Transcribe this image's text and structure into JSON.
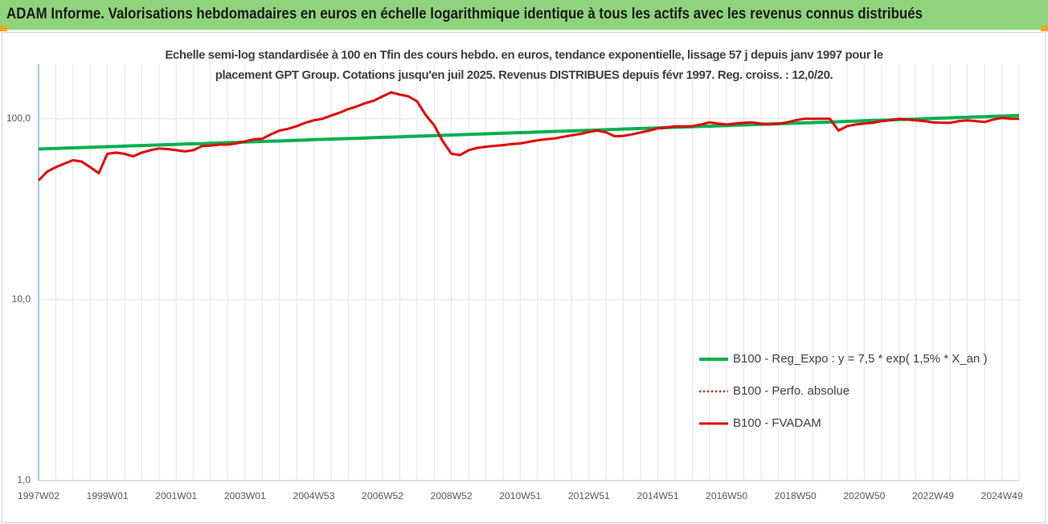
{
  "header": {
    "title": "ADAM Informe. Valorisations hebdomadaires en euros en échelle logarithmique identique à tous les actifs avec les revenus connus distribués"
  },
  "chart_data": {
    "type": "line",
    "title": "Echelle semi-log standardisée à 100 en Tfin des cours hebdo. en euros, tendance exponentielle, lissage 57 j depuis janv 1997 pour le placement GPT Group. Cotations jusqu'en juil 2025. Revenus DISTRIBUES depuis févr 1997. Reg. croiss. : 12,0/20.",
    "log_scale": true,
    "grid": true,
    "legend": "right",
    "ylim": [
      1,
      200
    ],
    "yticks": [
      {
        "value": 1,
        "label": "1,0"
      },
      {
        "value": 10,
        "label": "10,0"
      },
      {
        "value": 100,
        "label": "100,0"
      }
    ],
    "categories": [
      "1997W02",
      null,
      null,
      null,
      null,
      null,
      null,
      null,
      "1999W01",
      null,
      null,
      null,
      null,
      null,
      null,
      null,
      "2001W01",
      null,
      null,
      null,
      null,
      null,
      null,
      null,
      "2003W01",
      null,
      null,
      null,
      null,
      null,
      null,
      null,
      "2004W53",
      null,
      null,
      null,
      null,
      null,
      null,
      null,
      "2006W52",
      null,
      null,
      null,
      null,
      null,
      null,
      null,
      "2008W52",
      null,
      null,
      null,
      null,
      null,
      null,
      null,
      "2010W51",
      null,
      null,
      null,
      null,
      null,
      null,
      null,
      "2012W51",
      null,
      null,
      null,
      null,
      null,
      null,
      null,
      "2014W51",
      null,
      null,
      null,
      null,
      null,
      null,
      null,
      "2016W50",
      null,
      null,
      null,
      null,
      null,
      null,
      null,
      "2018W50",
      null,
      null,
      null,
      null,
      null,
      null,
      null,
      "2020W50",
      null,
      null,
      null,
      null,
      null,
      null,
      null,
      "2022W49",
      null,
      null,
      null,
      null,
      null,
      null,
      null,
      "2024W49",
      null,
      null
    ],
    "series": [
      {
        "name": "B100 - Reg_Expo : y = 7,5 * exp( 1,5% *  X_an )",
        "color": "#00b050",
        "style": "solid",
        "values": [
          68.0,
          68.3,
          68.5,
          68.8,
          69.0,
          69.3,
          69.6,
          69.8,
          70.1,
          70.3,
          70.6,
          70.9,
          71.1,
          71.4,
          71.6,
          71.9,
          72.2,
          72.4,
          72.7,
          72.9,
          73.2,
          73.5,
          73.8,
          74.1,
          74.3,
          74.6,
          74.9,
          75.2,
          75.4,
          75.7,
          76.0,
          76.3,
          76.6,
          76.9,
          77.2,
          77.5,
          77.7,
          78.0,
          78.3,
          78.6,
          78.9,
          79.2,
          79.5,
          79.8,
          80.1,
          80.4,
          80.7,
          81.0,
          81.3,
          81.6,
          81.9,
          82.2,
          82.6,
          82.9,
          83.2,
          83.5,
          83.8,
          84.1,
          84.5,
          84.8,
          85.1,
          85.4,
          85.7,
          86.1,
          86.4,
          86.7,
          87.0,
          87.3,
          87.7,
          88.0,
          88.3,
          88.6,
          89.0,
          89.3,
          89.7,
          90.0,
          90.3,
          90.7,
          91.0,
          91.4,
          91.7,
          92.1,
          92.4,
          92.8,
          93.1,
          93.5,
          93.8,
          94.2,
          94.5,
          94.9,
          95.2,
          95.6,
          95.9,
          96.3,
          96.7,
          97.0,
          97.4,
          97.8,
          98.1,
          98.5,
          98.9,
          99.3,
          99.6,
          100.0,
          100.4,
          100.8,
          101.2,
          101.5,
          101.9,
          102.3,
          102.7,
          103.1,
          103.5,
          103.8,
          104.2
        ]
      },
      {
        "name": "B100 - Perfo. absolue",
        "color": "#e00000",
        "style": "dotted",
        "values": [
          45.6,
          51,
          54,
          56.5,
          59,
          58,
          54,
          50,
          64,
          65,
          64,
          62,
          65,
          67,
          68.5,
          68,
          67,
          66,
          67,
          70.6,
          71,
          72,
          72,
          73,
          75,
          77,
          77.5,
          82,
          86,
          88,
          91,
          95,
          98,
          100,
          104,
          108,
          113,
          117,
          122,
          126,
          133,
          140,
          136,
          133,
          125,
          105,
          92,
          75,
          64,
          63,
          67,
          69,
          70,
          70.8,
          71.5,
          72.5,
          73,
          74.5,
          76,
          77,
          77.8,
          79.5,
          81,
          82.5,
          84.5,
          86,
          84,
          80,
          80.5,
          82,
          84,
          86,
          88.5,
          89.5,
          90.7,
          90.7,
          91,
          93,
          95.5,
          94,
          93,
          94,
          95,
          95.5,
          94,
          93,
          94,
          95.5,
          98,
          100,
          100,
          100,
          100,
          86,
          91,
          93,
          94,
          95,
          97,
          98,
          100,
          99,
          98,
          97,
          95.5,
          95,
          95,
          97,
          98,
          97,
          96,
          99,
          101,
          100,
          100
        ]
      },
      {
        "name": "B100 - FVADAM",
        "color": "#e00000",
        "style": "solid",
        "values": [
          45.6,
          51,
          54,
          56.5,
          59,
          58,
          54,
          50,
          64,
          65,
          64,
          62,
          65,
          67,
          68.5,
          68,
          67,
          66,
          67,
          70.6,
          71,
          72,
          72,
          73,
          75,
          77,
          77.5,
          82,
          86,
          88,
          91,
          95,
          98,
          100,
          104,
          108,
          113,
          117,
          122,
          126,
          133,
          140,
          136,
          133,
          125,
          105,
          92,
          75,
          64,
          63,
          67,
          69,
          70,
          70.8,
          71.5,
          72.5,
          73,
          74.5,
          76,
          77,
          77.8,
          79.5,
          81,
          82.5,
          84.5,
          86,
          84,
          80,
          80.5,
          82,
          84,
          86,
          88.5,
          89.5,
          90.7,
          90.7,
          91,
          93,
          95.5,
          94,
          93,
          94,
          95,
          95.5,
          94,
          93,
          94,
          95.5,
          98,
          100,
          100,
          100,
          100,
          86,
          91,
          93,
          94,
          95,
          97,
          98,
          100,
          99,
          98,
          97,
          95.5,
          95,
          95,
          97,
          98,
          97,
          96,
          99,
          101,
          100,
          100
        ]
      }
    ]
  }
}
